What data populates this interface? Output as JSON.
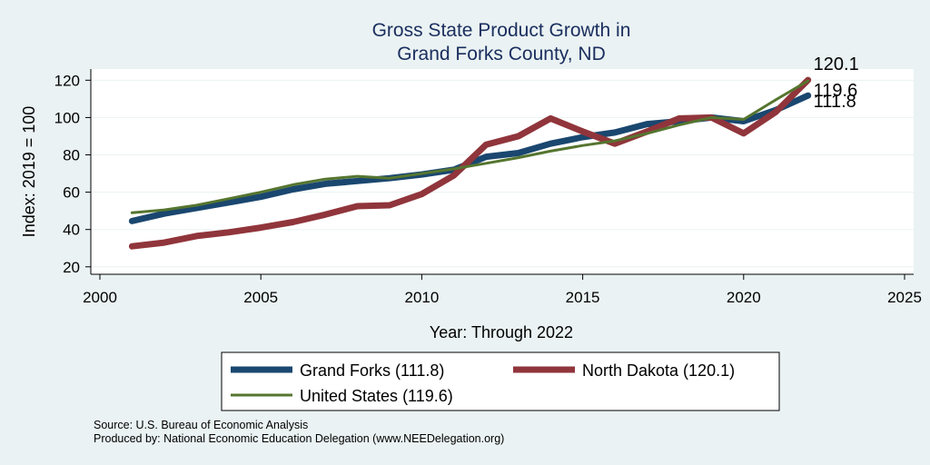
{
  "chart_data": {
    "type": "line",
    "title": [
      "Gross State Product Growth in",
      "Grand Forks County, ND"
    ],
    "xlabel": "Year: Through 2022",
    "ylabel": "Index: 2019 = 100",
    "xlim": [
      2000,
      2025
    ],
    "ylim": [
      16,
      126
    ],
    "xticks": [
      2000,
      2005,
      2010,
      2015,
      2020,
      2025
    ],
    "yticks": [
      20,
      40,
      60,
      80,
      100,
      120
    ],
    "grid": true,
    "x": [
      2001,
      2002,
      2003,
      2004,
      2005,
      2006,
      2007,
      2008,
      2009,
      2010,
      2011,
      2012,
      2013,
      2014,
      2015,
      2016,
      2017,
      2018,
      2019,
      2020,
      2021,
      2022
    ],
    "series": [
      {
        "name": "Grand Forks",
        "legend": "Grand Forks  (111.8)",
        "color": "#1a476f",
        "end_label": "111.8",
        "values": [
          44.5,
          48.5,
          51.5,
          54.5,
          57.5,
          61.5,
          64.5,
          66,
          67.5,
          69.5,
          72,
          79,
          81,
          86,
          89.5,
          92,
          96.5,
          98,
          100,
          98,
          104,
          111.8
        ]
      },
      {
        "name": "North Dakota",
        "legend": "North Dakota (120.1)",
        "color": "#90353b",
        "end_label": "120.1",
        "values": [
          31,
          33,
          36.5,
          38.5,
          41,
          44,
          48,
          52.5,
          53,
          59,
          69,
          85.5,
          90,
          99.5,
          92.5,
          86,
          92.5,
          99.5,
          100,
          91.5,
          103,
          120.1
        ]
      },
      {
        "name": "United States",
        "legend": "United States (119.6)",
        "color": "#55752f",
        "end_label": "119.6",
        "values": [
          49,
          50.5,
          53,
          56.5,
          60,
          64,
          67,
          68.5,
          67.5,
          70,
          72.5,
          75.5,
          78.5,
          82,
          85,
          87.5,
          91.5,
          96,
          100,
          99,
          109.5,
          119.6
        ]
      }
    ],
    "legend_position": "bottom",
    "notes": [
      "Source: U.S. Bureau of Economic Analysis",
      "Produced by: National Economic Education Delegation (www.NEEDelegation.org)"
    ]
  }
}
